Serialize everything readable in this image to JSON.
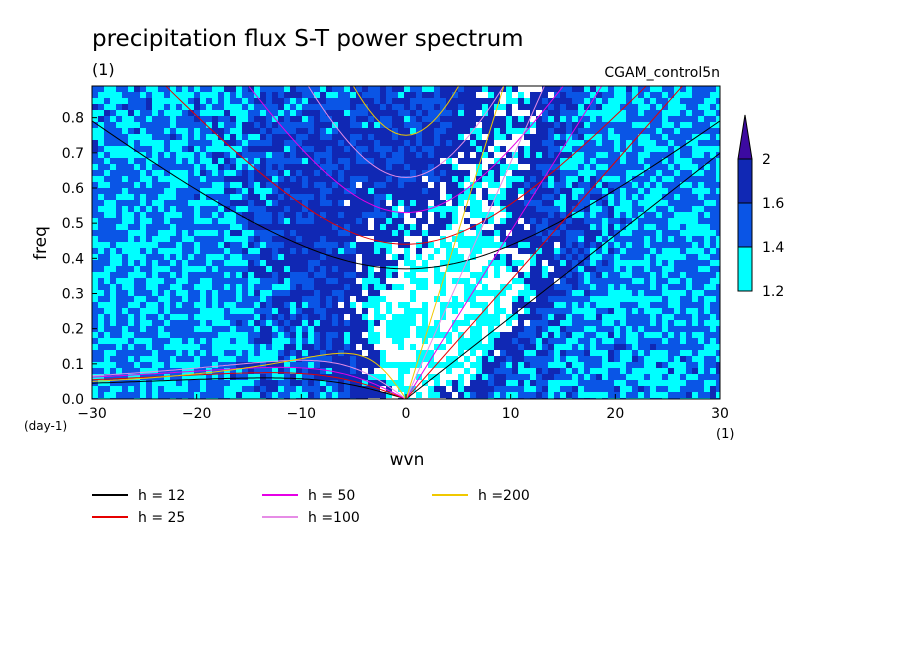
{
  "chart_data": {
    "type": "heatmap",
    "title": "precipitation flux S-T power spectrum",
    "subtitle_left": "(1)",
    "subtitle_right": "CGAM_control5n",
    "xlabel": "wvn",
    "xunit": "(1)",
    "ylabel": "freq",
    "yunit": "(day-1)",
    "xlim": [
      -30,
      30
    ],
    "ylim": [
      0,
      0.89
    ],
    "x_ticks": [
      -30,
      -20,
      -10,
      0,
      10,
      20,
      30
    ],
    "x_tick_labels": [
      "−30",
      "−20",
      "−10",
      "0",
      "10",
      "20",
      "30"
    ],
    "y_ticks": [
      0.0,
      0.1,
      0.2,
      0.3,
      0.4,
      0.5,
      0.6,
      0.7,
      0.8
    ],
    "y_tick_labels": [
      "0.0",
      "0.1",
      "0.2",
      "0.3",
      "0.4",
      "0.5",
      "0.6",
      "0.7",
      "0.8"
    ],
    "colorbar": {
      "levels": [
        1.2,
        1.4,
        1.6,
        2
      ],
      "level_labels": [
        "1.2",
        "1.4",
        "1.6",
        "2"
      ],
      "colors": [
        "#00ffff",
        "#0a55e6",
        "#1028b4",
        "#3c0aa0"
      ],
      "background": "#3c0aa0",
      "extend": "max"
    },
    "dispersion_curves": {
      "equivalent_depths": [
        {
          "label": "h = 12",
          "h": 12,
          "color": "#000000"
        },
        {
          "label": "h = 25",
          "h": 25,
          "color": "#e60000"
        },
        {
          "label": "h = 50",
          "h": 50,
          "color": "#e600e6"
        },
        {
          "label": "h =100",
          "h": 100,
          "color": "#e68ce6"
        },
        {
          "label": "h =200",
          "h": 200,
          "color": "#f0c800"
        }
      ],
      "kelvin_slopes": {
        "12": 0.0233,
        "25": 0.0337,
        "50": 0.0476,
        "100": 0.0673,
        "200": 0.0952
      },
      "ig_min_freq": {
        "12": 0.37,
        "25": 0.44,
        "50": 0.53,
        "100": 0.63,
        "200": 0.75
      },
      "rossby_peak_freq": {
        "12": 0.06,
        "25": 0.075,
        "50": 0.09,
        "100": 0.11,
        "200": 0.13
      }
    }
  }
}
